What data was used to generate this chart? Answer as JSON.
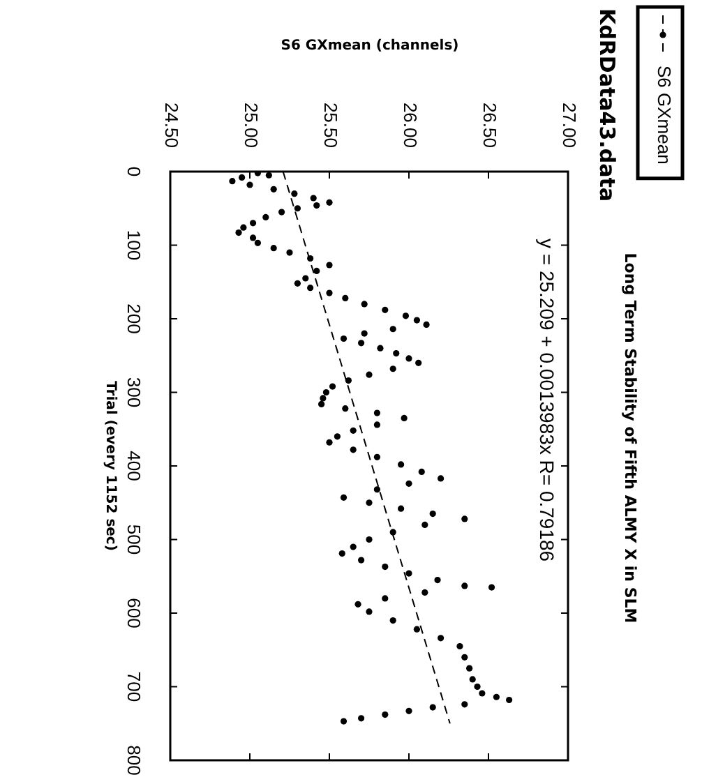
{
  "chart_data": {
    "type": "scatter",
    "title": "Long Term Stability of Fifth ALMY X in SLM",
    "subtitle": "KdRData43.data",
    "xlabel": "S6 GXmean (channels)",
    "ylabel": "Trial (every 1152 sec)",
    "annotations": [
      "y = 25.209 + 0.0013983x R= 0.79186"
    ],
    "xlim": [
      24.5,
      27
    ],
    "xticks": [
      {
        "value": 24.5,
        "label": "24.50"
      },
      {
        "value": 25,
        "label": "25.00"
      },
      {
        "value": 25.5,
        "label": "25.50"
      },
      {
        "value": 26,
        "label": "26.00"
      },
      {
        "value": 26.5,
        "label": "26.50"
      },
      {
        "value": 27,
        "label": "27.00"
      }
    ],
    "ylim": [
      800,
      0
    ],
    "yticks": [
      0,
      100,
      200,
      300,
      400,
      500,
      600,
      700,
      800
    ],
    "grid": false,
    "legend": "top right",
    "marker": "circle",
    "series": [
      {
        "name": "S6 GXmean",
        "color": "#000000",
        "x": [
          25.05,
          25.12,
          24.95,
          24.89,
          25.0,
          25.15,
          25.28,
          25.4,
          25.5,
          25.42,
          25.3,
          25.2,
          25.1,
          25.02,
          24.96,
          24.93,
          25.02,
          25.05,
          25.15,
          25.25,
          25.38,
          25.5,
          25.42,
          25.35,
          25.3,
          25.38,
          25.5,
          25.6,
          25.72,
          25.85,
          25.98,
          26.05,
          26.11,
          25.9,
          25.72,
          25.59,
          25.7,
          25.82,
          25.92,
          26.0,
          26.06,
          25.9,
          25.75,
          25.62,
          25.52,
          25.48,
          25.46,
          25.45,
          25.6,
          25.8,
          25.97,
          25.8,
          25.65,
          25.55,
          25.5,
          25.65,
          25.8,
          25.95,
          26.08,
          26.2,
          26.0,
          25.8,
          25.59,
          25.75,
          25.95,
          26.15,
          26.35,
          26.1,
          25.9,
          25.75,
          25.65,
          25.58,
          25.7,
          25.85,
          26.0,
          26.18,
          26.35,
          26.52,
          26.1,
          25.85,
          25.68,
          25.75,
          25.9,
          26.05,
          26.2,
          26.32,
          26.35,
          26.38,
          26.4,
          26.43,
          26.46,
          26.55,
          26.63,
          26.35,
          26.15,
          26.0,
          25.85,
          25.7,
          25.59
        ],
        "values": [
          2,
          5,
          8,
          13,
          18,
          24,
          30,
          36,
          42,
          46,
          50,
          55,
          62,
          70,
          76,
          83,
          90,
          97,
          104,
          110,
          118,
          127,
          135,
          145,
          152,
          158,
          165,
          172,
          180,
          188,
          196,
          202,
          208,
          214,
          220,
          227,
          233,
          240,
          247,
          254,
          260,
          268,
          276,
          284,
          292,
          300,
          308,
          316,
          322,
          328,
          335,
          344,
          352,
          360,
          368,
          378,
          388,
          398,
          408,
          417,
          424,
          432,
          443,
          450,
          458,
          465,
          472,
          480,
          490,
          500,
          510,
          519,
          528,
          537,
          546,
          555,
          563,
          565,
          572,
          580,
          588,
          598,
          610,
          622,
          634,
          645,
          660,
          675,
          690,
          700,
          709,
          714,
          718,
          724,
          728,
          733,
          738,
          743,
          747
        ]
      },
      {
        "type": "line",
        "line_style": "dashed",
        "marker": "none",
        "color": "#000000",
        "x": [
          25.209,
          26.258
        ],
        "values": [
          0,
          750
        ]
      }
    ]
  }
}
